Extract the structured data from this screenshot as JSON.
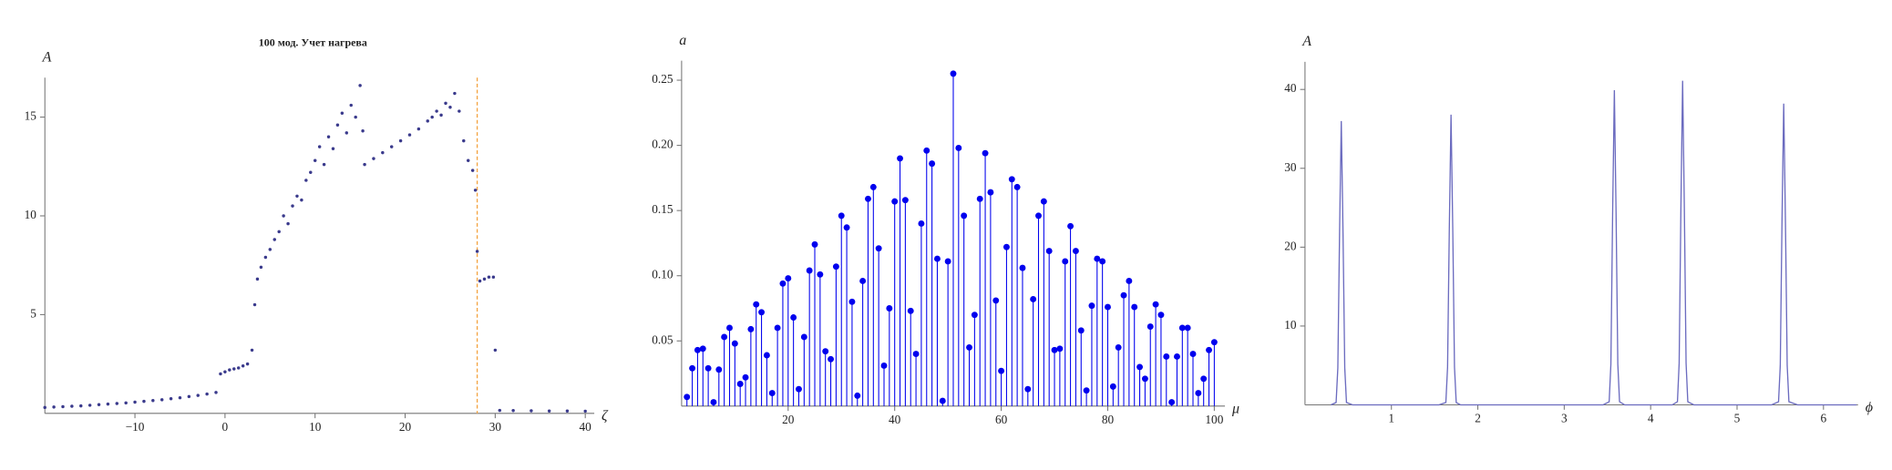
{
  "chart_data": [
    {
      "type": "scatter",
      "title": "100 мод. Учет нагрева",
      "y_label": "A",
      "x_label": "ζ",
      "color": "#3a3a8c",
      "xlim": [
        -20,
        41
      ],
      "ylim": [
        0,
        17
      ],
      "xticks": [
        {
          "value": -10,
          "label": "−10"
        },
        0,
        10,
        20,
        30,
        40
      ],
      "yticks": [
        5,
        10,
        15
      ],
      "vline": 28,
      "vline_color": "#f4a340",
      "x": [
        -20,
        -19,
        -18,
        -17,
        -16,
        -15,
        -14,
        -13,
        -12,
        -11,
        -10,
        -9,
        -8,
        -7,
        -6,
        -5,
        -4,
        -3,
        -2,
        -1,
        -0.5,
        0,
        0.5,
        1,
        1.5,
        2,
        2.5,
        3,
        3.3,
        3.6,
        4,
        4.5,
        5,
        5.5,
        6,
        6.5,
        7,
        7.5,
        8,
        8.5,
        9,
        9.5,
        10,
        10.5,
        11,
        11.5,
        12,
        12.5,
        13,
        13.5,
        14,
        14.5,
        15,
        15.3,
        15.5,
        16.5,
        17.5,
        18.5,
        19.5,
        20.5,
        21.5,
        22.5,
        23,
        23.5,
        24,
        24.5,
        25,
        25.5,
        26,
        26.5,
        27,
        27.5,
        27.8,
        28,
        28.3,
        28.8,
        29.3,
        29.8,
        30,
        30.5,
        32,
        34,
        36,
        38,
        40
      ],
      "values": [
        0.3,
        0.32,
        0.34,
        0.36,
        0.38,
        0.41,
        0.44,
        0.47,
        0.5,
        0.53,
        0.57,
        0.61,
        0.65,
        0.69,
        0.74,
        0.79,
        0.85,
        0.91,
        0.98,
        1.06,
        2.0,
        2.1,
        2.2,
        2.25,
        2.3,
        2.4,
        2.5,
        3.2,
        5.5,
        6.8,
        7.4,
        7.9,
        8.3,
        8.8,
        9.2,
        10,
        9.6,
        10.5,
        11,
        10.8,
        11.8,
        12.2,
        12.8,
        13.5,
        12.6,
        14.0,
        13.4,
        14.6,
        15.2,
        14.2,
        15.6,
        15.0,
        16.6,
        14.3,
        12.6,
        12.9,
        13.2,
        13.5,
        13.8,
        14.1,
        14.4,
        14.8,
        15.0,
        15.3,
        15.1,
        15.7,
        15.5,
        16.2,
        15.3,
        13.8,
        12.8,
        12.3,
        11.3,
        8.2,
        6.7,
        6.8,
        6.9,
        6.9,
        3.2,
        0.15,
        0.14,
        0.13,
        0.12,
        0.12,
        0.11
      ]
    },
    {
      "type": "stem",
      "y_label": "a",
      "x_label": "μ",
      "color": "#0000ee",
      "xlim": [
        0,
        102
      ],
      "ylim": [
        0,
        0.265
      ],
      "xticks": [
        20,
        40,
        60,
        80,
        100
      ],
      "yticks": [
        0.05,
        {
          "value": 0.1,
          "label": "0.10"
        },
        0.15,
        {
          "value": 0.2,
          "label": "0.20"
        },
        0.25
      ],
      "x": [
        1,
        2,
        3,
        4,
        5,
        6,
        7,
        8,
        9,
        10,
        11,
        12,
        13,
        14,
        15,
        16,
        17,
        18,
        19,
        20,
        21,
        22,
        23,
        24,
        25,
        26,
        27,
        28,
        29,
        30,
        31,
        32,
        33,
        34,
        35,
        36,
        37,
        38,
        39,
        40,
        41,
        42,
        43,
        44,
        45,
        46,
        47,
        48,
        49,
        50,
        51,
        52,
        53,
        54,
        55,
        56,
        57,
        58,
        59,
        60,
        61,
        62,
        63,
        64,
        65,
        66,
        67,
        68,
        69,
        70,
        71,
        72,
        73,
        74,
        75,
        76,
        77,
        78,
        79,
        80,
        81,
        82,
        83,
        84,
        85,
        86,
        87,
        88,
        89,
        90,
        91,
        92,
        93,
        94,
        95,
        96,
        97,
        98,
        99,
        100
      ],
      "values": [
        0.007,
        0.029,
        0.043,
        0.044,
        0.029,
        0.003,
        0.028,
        0.053,
        0.06,
        0.048,
        0.017,
        0.022,
        0.059,
        0.078,
        0.072,
        0.039,
        0.01,
        0.06,
        0.094,
        0.098,
        0.068,
        0.013,
        0.053,
        0.104,
        0.124,
        0.101,
        0.042,
        0.036,
        0.107,
        0.146,
        0.137,
        0.08,
        0.008,
        0.096,
        0.159,
        0.168,
        0.121,
        0.031,
        0.075,
        0.157,
        0.19,
        0.158,
        0.073,
        0.04,
        0.14,
        0.196,
        0.186,
        0.113,
        0.004,
        0.111,
        0.255,
        0.198,
        0.146,
        0.045,
        0.07,
        0.159,
        0.194,
        0.164,
        0.081,
        0.027,
        0.122,
        0.174,
        0.168,
        0.106,
        0.013,
        0.082,
        0.146,
        0.157,
        0.119,
        0.043,
        0.044,
        0.111,
        0.138,
        0.119,
        0.058,
        0.012,
        0.077,
        0.113,
        0.111,
        0.076,
        0.015,
        0.045,
        0.085,
        0.096,
        0.076,
        0.03,
        0.021,
        0.061,
        0.078,
        0.07,
        0.038,
        0.003,
        0.038,
        0.06,
        0.06,
        0.04,
        0.01,
        0.021,
        0.043,
        0.049
      ]
    },
    {
      "type": "line",
      "y_label": "A",
      "x_label": "ϕ",
      "color": "#6b6bbf",
      "xlim": [
        0,
        6.4
      ],
      "ylim": [
        0,
        43.5
      ],
      "xticks": [
        1,
        2,
        3,
        4,
        5,
        6
      ],
      "yticks": [
        10,
        20,
        30,
        40
      ],
      "x": [
        0.3,
        0.36,
        0.38,
        0.4,
        0.42,
        0.44,
        0.46,
        0.48,
        0.55,
        1.55,
        1.63,
        1.65,
        1.67,
        1.69,
        1.71,
        1.73,
        1.75,
        1.8,
        3.45,
        3.52,
        3.54,
        3.56,
        3.58,
        3.6,
        3.62,
        3.64,
        3.7,
        4.25,
        4.31,
        4.33,
        4.35,
        4.37,
        4.39,
        4.41,
        4.43,
        4.5,
        5.4,
        5.48,
        5.5,
        5.52,
        5.54,
        5.56,
        5.58,
        5.6,
        5.7,
        6.38
      ],
      "values": [
        0,
        0.3,
        4.7,
        21.8,
        36,
        21.8,
        4.7,
        0.3,
        0,
        0,
        0.3,
        4.8,
        22.3,
        36.8,
        22.3,
        4.8,
        0.3,
        0,
        0,
        0.4,
        5.2,
        24.2,
        39.9,
        24.2,
        5.2,
        0.4,
        0,
        0,
        0.4,
        5.3,
        24.9,
        41.1,
        24.9,
        5.3,
        0.4,
        0,
        0,
        0.4,
        5.0,
        23.2,
        38.2,
        23.2,
        5.0,
        0.4,
        0,
        0
      ]
    }
  ]
}
